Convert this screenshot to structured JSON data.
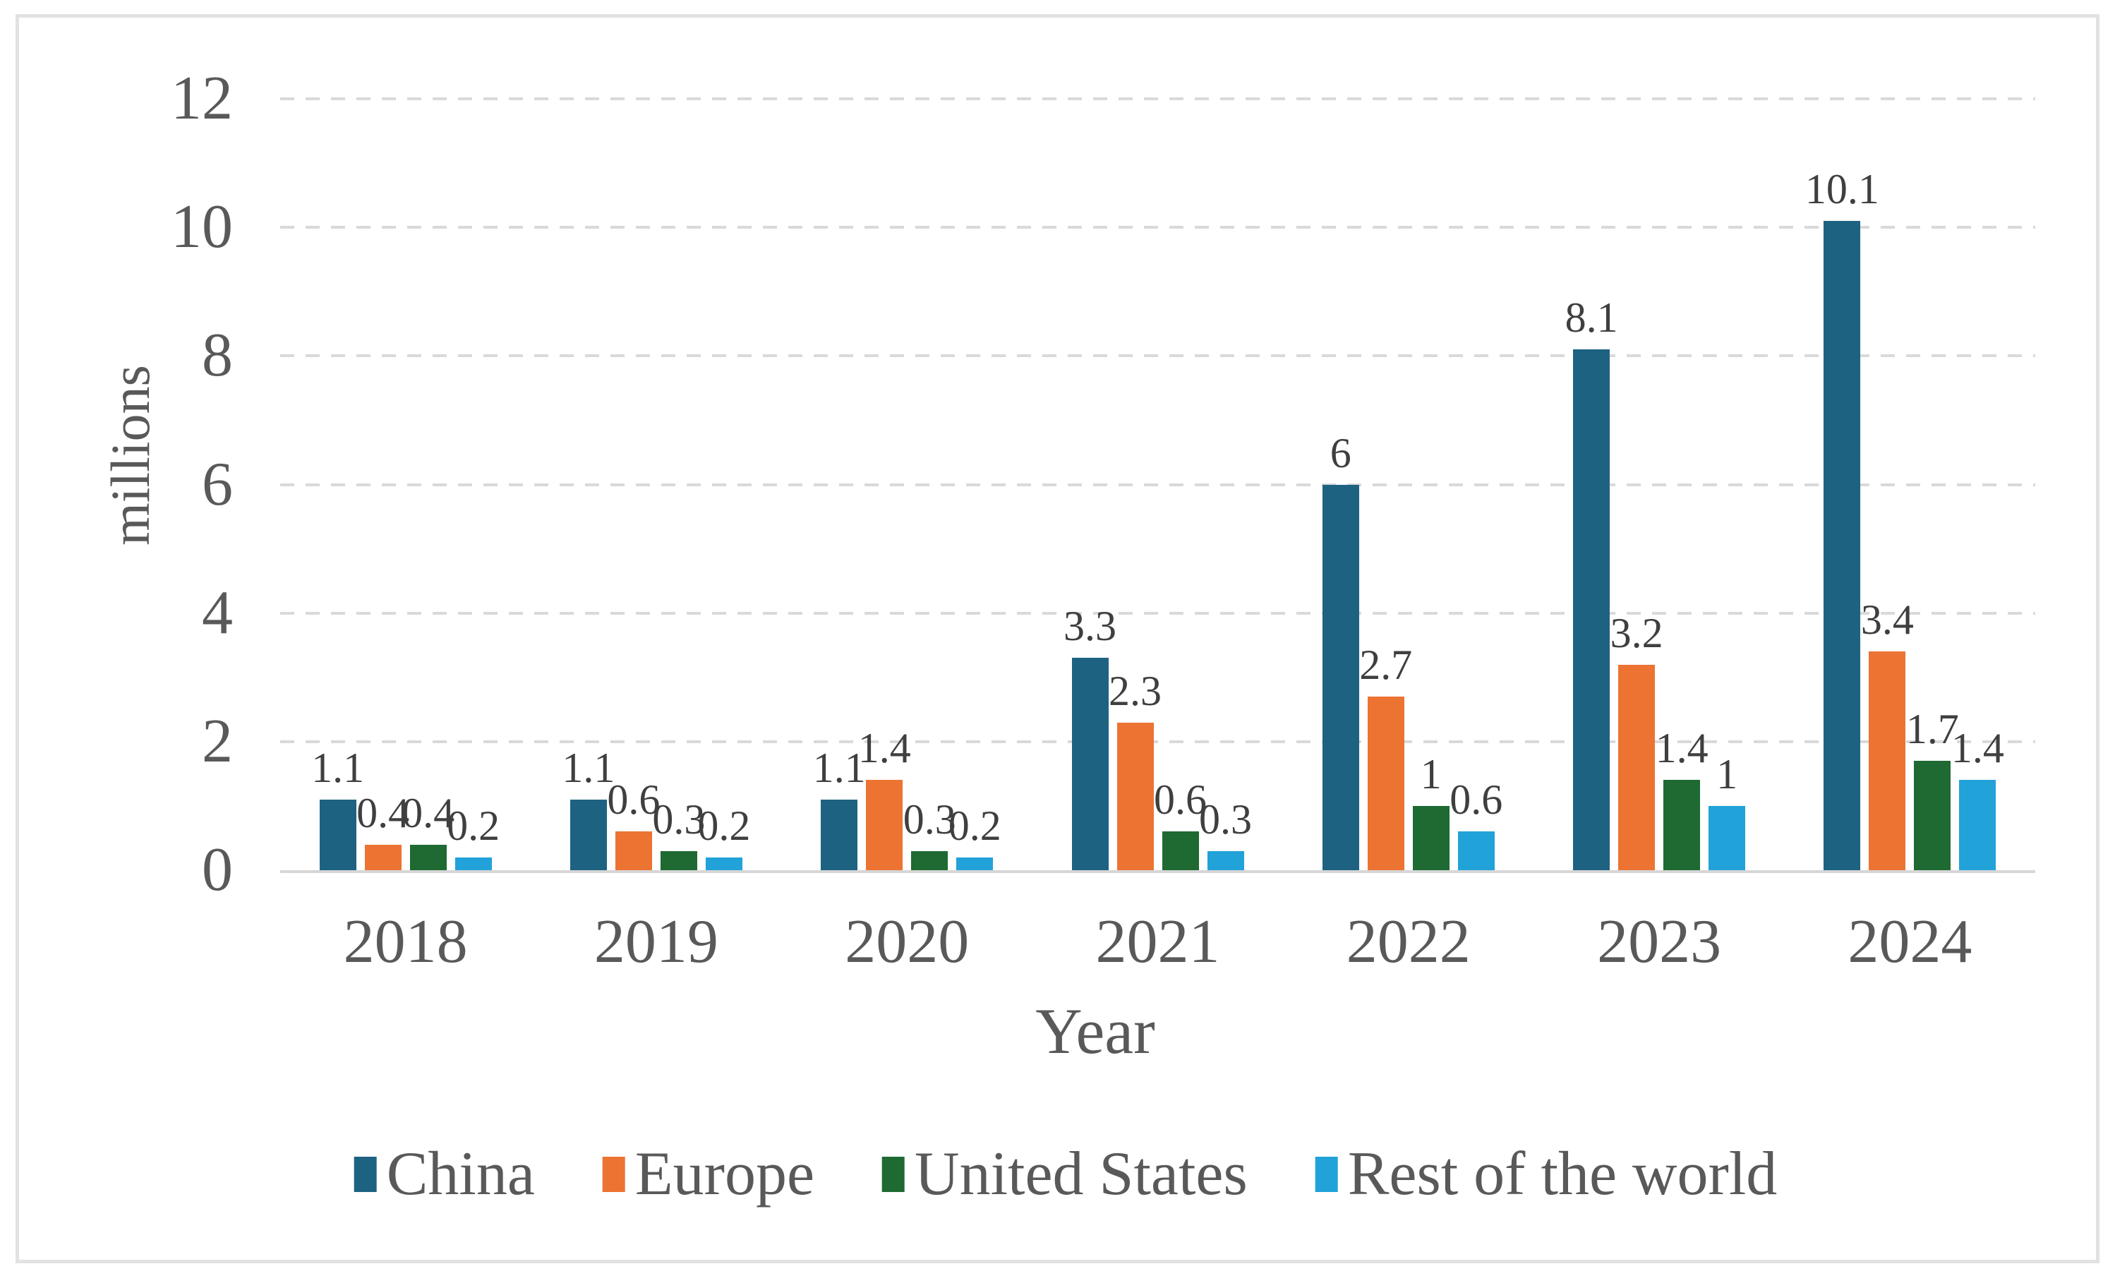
{
  "chart_data": {
    "type": "bar",
    "title": "",
    "xlabel": "Year",
    "ylabel": "millions",
    "categories": [
      "2018",
      "2019",
      "2020",
      "2021",
      "2022",
      "2023",
      "2024"
    ],
    "series": [
      {
        "name": "China",
        "color": "#1E6282",
        "values": [
          1.1,
          1.1,
          1.1,
          3.3,
          6,
          8.1,
          10.1
        ]
      },
      {
        "name": "Europe",
        "color": "#EC7332",
        "values": [
          0.4,
          0.6,
          1.4,
          2.3,
          2.7,
          3.2,
          3.4
        ]
      },
      {
        "name": "United States",
        "color": "#1E6A32",
        "values": [
          0.4,
          0.3,
          0.3,
          0.6,
          1,
          1.4,
          1.7
        ]
      },
      {
        "name": "Rest of the world",
        "color": "#21A2D8",
        "values": [
          0.2,
          0.2,
          0.2,
          0.3,
          0.6,
          1,
          1.4
        ]
      }
    ],
    "data_labels": [
      [
        "1.1",
        "0.4",
        "0.4",
        "0.2"
      ],
      [
        "1.1",
        "0.6",
        "0.3",
        "0.2"
      ],
      [
        "1.1",
        "1.4",
        "0.3",
        "0.2"
      ],
      [
        "3.3",
        "2.3",
        "0.6",
        "0.3"
      ],
      [
        "6",
        "2.7",
        "1",
        "0.6"
      ],
      [
        "8.1",
        "3.2",
        "1.4",
        "1"
      ],
      [
        "10.1",
        "3.4",
        "1.7",
        "1.4"
      ]
    ],
    "y_ticks": [
      0,
      2,
      4,
      6,
      8,
      10,
      12
    ],
    "y_tick_labels": [
      "0",
      "2",
      "4",
      "6",
      "8",
      "10",
      "12"
    ],
    "ylim": [
      0,
      12
    ],
    "grid": "horizontal-dashed",
    "legend_position": "bottom",
    "legend_entries": [
      "China",
      "Europe",
      "United States",
      "Rest of the world"
    ]
  },
  "style_colors": {
    "axis_text": "#595959",
    "data_label_text": "#3F3F3F",
    "gridline": "#D9D9D9",
    "axis_line": "#D6D6D6",
    "frame_border": "#E2E2E2",
    "background": "#FFFFFF"
  }
}
